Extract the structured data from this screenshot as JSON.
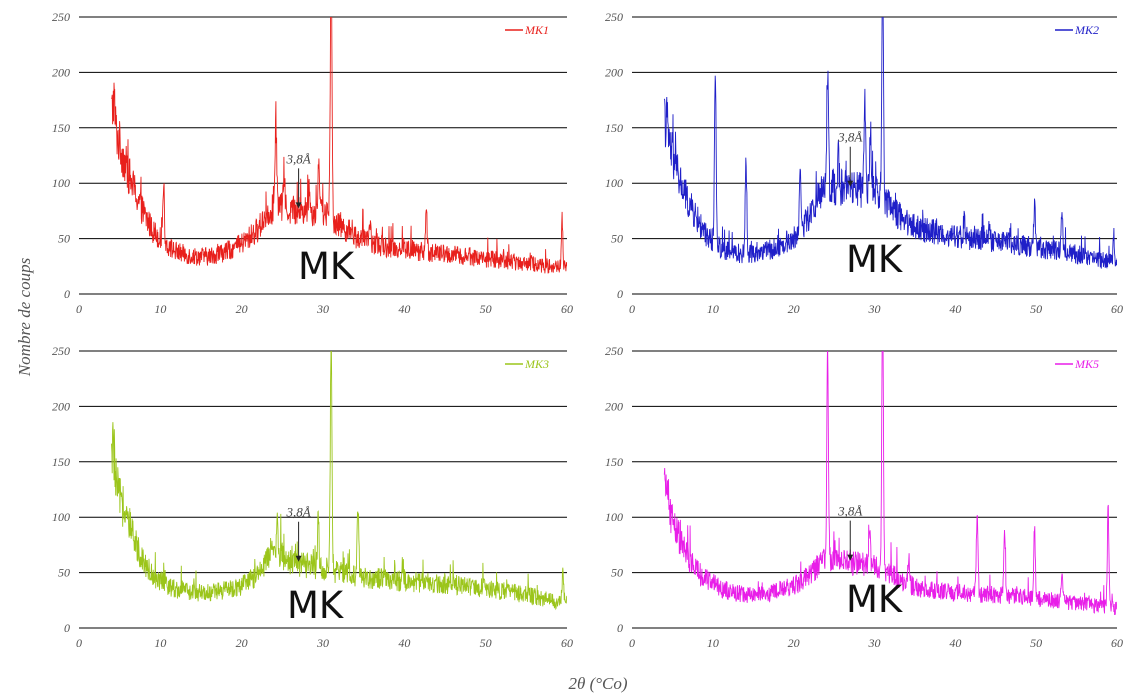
{
  "figure": {
    "ylabel": "Nombre de coups",
    "xlabel": "2θ (°Co)"
  },
  "chart_data": [
    {
      "type": "line",
      "series": [
        {
          "name": "MK1",
          "color": "#e8201c"
        }
      ],
      "annotation": "3,8Å",
      "annotation_x": 27,
      "overlay_label": "MK",
      "xlim": [
        0,
        60
      ],
      "ylim": [
        0,
        250
      ],
      "xticks": [
        0,
        10,
        20,
        30,
        40,
        50,
        60
      ],
      "yticks": [
        0,
        50,
        100,
        150,
        200,
        250
      ],
      "grid": true,
      "legend": "top-right",
      "baseline": [
        [
          4,
          165
        ],
        [
          5,
          135
        ],
        [
          6,
          110
        ],
        [
          7,
          90
        ],
        [
          8,
          72
        ],
        [
          9,
          58
        ],
        [
          10,
          50
        ],
        [
          11,
          43
        ],
        [
          12,
          38
        ],
        [
          14,
          34
        ],
        [
          16,
          34
        ],
        [
          18,
          38
        ],
        [
          20,
          45
        ],
        [
          22,
          58
        ],
        [
          23,
          72
        ],
        [
          24,
          78
        ],
        [
          26,
          76
        ],
        [
          28,
          75
        ],
        [
          30,
          74
        ],
        [
          32,
          63
        ],
        [
          34,
          52
        ],
        [
          36,
          45
        ],
        [
          40,
          40
        ],
        [
          45,
          36
        ],
        [
          50,
          32
        ],
        [
          55,
          28
        ],
        [
          60,
          23
        ]
      ],
      "peaks": [
        [
          4.3,
          178
        ],
        [
          10.4,
          100
        ],
        [
          24.2,
          158
        ],
        [
          25.2,
          110
        ],
        [
          28.3,
          95
        ],
        [
          29.5,
          125
        ],
        [
          31.0,
          300
        ],
        [
          35.8,
          65
        ],
        [
          42.7,
          75
        ],
        [
          59.4,
          65
        ]
      ]
    },
    {
      "type": "line",
      "series": [
        {
          "name": "MK2",
          "color": "#1f1fc8"
        }
      ],
      "annotation": "3,8Å",
      "annotation_x": 27,
      "overlay_label": "MK",
      "xlim": [
        0,
        60
      ],
      "ylim": [
        0,
        250
      ],
      "xticks": [
        0,
        10,
        20,
        30,
        40,
        50,
        60
      ],
      "yticks": [
        0,
        50,
        100,
        150,
        200,
        250
      ],
      "grid": true,
      "legend": "top-right",
      "baseline": [
        [
          4,
          155
        ],
        [
          5,
          125
        ],
        [
          6,
          100
        ],
        [
          7,
          82
        ],
        [
          8,
          68
        ],
        [
          9,
          55
        ],
        [
          10,
          48
        ],
        [
          11,
          42
        ],
        [
          12,
          38
        ],
        [
          14,
          36
        ],
        [
          16,
          38
        ],
        [
          18,
          42
        ],
        [
          20,
          50
        ],
        [
          22,
          70
        ],
        [
          23,
          88
        ],
        [
          24,
          98
        ],
        [
          26,
          96
        ],
        [
          28,
          94
        ],
        [
          30,
          92
        ],
        [
          32,
          78
        ],
        [
          34,
          65
        ],
        [
          36,
          58
        ],
        [
          40,
          52
        ],
        [
          45,
          47
        ],
        [
          50,
          42
        ],
        [
          55,
          36
        ],
        [
          60,
          27
        ]
      ],
      "peaks": [
        [
          4.3,
          160
        ],
        [
          10.3,
          205
        ],
        [
          14.1,
          122
        ],
        [
          20.8,
          110
        ],
        [
          24.2,
          205
        ],
        [
          25.5,
          125
        ],
        [
          28.8,
          170
        ],
        [
          29.5,
          155
        ],
        [
          31.0,
          300
        ],
        [
          41.1,
          68
        ],
        [
          44.2,
          60
        ],
        [
          49.8,
          80
        ],
        [
          53.2,
          73
        ],
        [
          59.6,
          50
        ]
      ]
    },
    {
      "type": "line",
      "series": [
        {
          "name": "MK3",
          "color": "#9bc51a"
        }
      ],
      "annotation": "3,8Å",
      "annotation_x": 27,
      "overlay_label": "MK",
      "xlim": [
        0,
        60
      ],
      "ylim": [
        0,
        250
      ],
      "xticks": [
        0,
        10,
        20,
        30,
        40,
        50,
        60
      ],
      "yticks": [
        0,
        50,
        100,
        150,
        200,
        250
      ],
      "grid": true,
      "legend": "top-right",
      "baseline": [
        [
          4,
          150
        ],
        [
          5,
          118
        ],
        [
          6,
          95
        ],
        [
          7,
          75
        ],
        [
          8,
          60
        ],
        [
          9,
          48
        ],
        [
          10,
          42
        ],
        [
          11,
          38
        ],
        [
          12,
          35
        ],
        [
          14,
          32
        ],
        [
          16,
          32
        ],
        [
          18,
          34
        ],
        [
          20,
          38
        ],
        [
          22,
          48
        ],
        [
          23,
          60
        ],
        [
          24,
          70
        ],
        [
          26,
          60
        ],
        [
          28,
          56
        ],
        [
          30,
          54
        ],
        [
          32,
          50
        ],
        [
          34,
          47
        ],
        [
          36,
          45
        ],
        [
          40,
          42
        ],
        [
          45,
          40
        ],
        [
          50,
          36
        ],
        [
          55,
          30
        ],
        [
          60,
          22
        ]
      ],
      "peaks": [
        [
          4.2,
          165
        ],
        [
          24.4,
          97
        ],
        [
          29.4,
          90
        ],
        [
          31.0,
          260
        ],
        [
          34.3,
          110
        ],
        [
          39.8,
          58
        ],
        [
          59.5,
          50
        ]
      ]
    },
    {
      "type": "line",
      "series": [
        {
          "name": "MK5",
          "color": "#e81ee8"
        }
      ],
      "annotation": "3,8Å",
      "annotation_x": 27,
      "overlay_label": "MK",
      "xlim": [
        0,
        60
      ],
      "ylim": [
        0,
        250
      ],
      "xticks": [
        0,
        10,
        20,
        30,
        40,
        50,
        60
      ],
      "yticks": [
        0,
        50,
        100,
        150,
        200,
        250
      ],
      "grid": true,
      "legend": "top-right",
      "baseline": [
        [
          4,
          125
        ],
        [
          5,
          98
        ],
        [
          6,
          78
        ],
        [
          7,
          62
        ],
        [
          8,
          52
        ],
        [
          9,
          45
        ],
        [
          10,
          40
        ],
        [
          11,
          36
        ],
        [
          12,
          33
        ],
        [
          14,
          30
        ],
        [
          16,
          30
        ],
        [
          18,
          33
        ],
        [
          20,
          38
        ],
        [
          22,
          48
        ],
        [
          23,
          56
        ],
        [
          24,
          62
        ],
        [
          26,
          60
        ],
        [
          28,
          58
        ],
        [
          30,
          56
        ],
        [
          32,
          48
        ],
        [
          34,
          40
        ],
        [
          36,
          35
        ],
        [
          40,
          32
        ],
        [
          45,
          30
        ],
        [
          50,
          27
        ],
        [
          55,
          22
        ],
        [
          60,
          18
        ]
      ],
      "peaks": [
        [
          4.3,
          132
        ],
        [
          24.2,
          250
        ],
        [
          29.4,
          88
        ],
        [
          31.0,
          300
        ],
        [
          34.2,
          55
        ],
        [
          42.7,
          102
        ],
        [
          46.1,
          85
        ],
        [
          49.8,
          88
        ],
        [
          53.2,
          55
        ],
        [
          58.9,
          108
        ]
      ]
    }
  ]
}
